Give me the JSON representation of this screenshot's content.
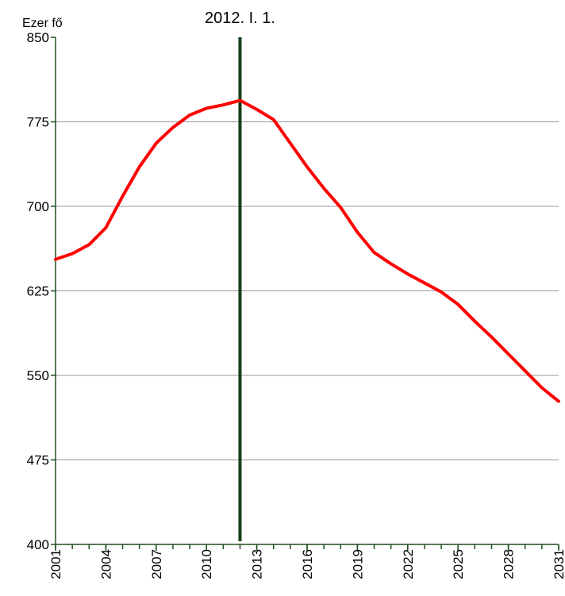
{
  "chart_data": {
    "type": "line",
    "y_label": "Ezer fő",
    "annotation": {
      "text": "2012. I. 1.",
      "x": 2012
    },
    "x": [
      2001,
      2002,
      2003,
      2004,
      2005,
      2006,
      2007,
      2008,
      2009,
      2010,
      2011,
      2012,
      2013,
      2014,
      2015,
      2016,
      2017,
      2018,
      2019,
      2020,
      2021,
      2022,
      2023,
      2024,
      2025,
      2026,
      2027,
      2028,
      2029,
      2030,
      2031
    ],
    "series": [
      {
        "color": "#ff0000",
        "values": [
          653,
          658,
          666,
          681,
          709,
          735,
          756,
          770,
          781,
          787,
          790,
          794,
          786,
          777,
          756,
          735,
          716,
          699,
          677,
          659,
          649,
          640,
          632,
          624,
          613,
          598,
          584,
          569,
          554,
          539,
          527
        ]
      }
    ],
    "xlim": [
      2001,
      2031
    ],
    "xticks": [
      2001,
      2004,
      2007,
      2010,
      2013,
      2016,
      2019,
      2022,
      2025,
      2028,
      2031
    ],
    "ylim": [
      400,
      850
    ],
    "yticks": [
      400,
      475,
      550,
      625,
      700,
      775,
      850
    ],
    "grid": true
  }
}
